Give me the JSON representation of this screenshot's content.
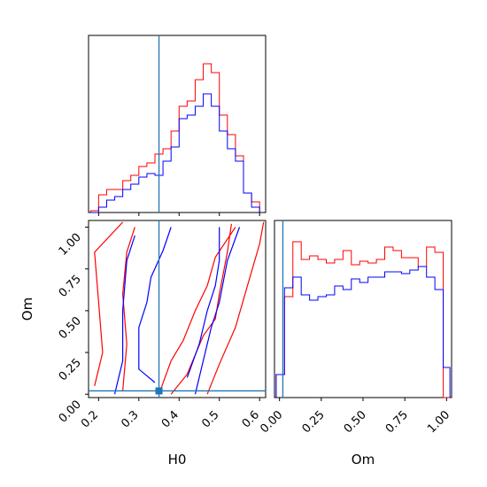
{
  "chart_data": {
    "type": "corner",
    "colors": {
      "series_a": "#ff0000",
      "series_b": "#0000ff",
      "truth": "#1f77b4"
    },
    "truth": {
      "H0": 0.35,
      "Om": 0.02
    },
    "panels": [
      {
        "id": "hist-H0",
        "type": "histogram",
        "xlim": [
          0.175,
          0.615
        ],
        "ylim": [
          0,
          1
        ],
        "xticks": [
          0.2,
          0.3,
          0.4,
          0.5,
          0.6
        ],
        "bin_edges": [
          0.18,
          0.2,
          0.22,
          0.24,
          0.26,
          0.28,
          0.3,
          0.32,
          0.34,
          0.36,
          0.38,
          0.4,
          0.42,
          0.44,
          0.46,
          0.48,
          0.5,
          0.52,
          0.54,
          0.56,
          0.58,
          0.6
        ],
        "series": [
          {
            "color": "red",
            "values": [
              0.01,
              0.1,
              0.13,
              0.13,
              0.18,
              0.21,
              0.26,
              0.28,
              0.33,
              0.36,
              0.46,
              0.6,
              0.63,
              0.75,
              0.84,
              0.79,
              0.55,
              0.44,
              0.32,
              0.11,
              0.06
            ]
          },
          {
            "color": "blue",
            "values": [
              0.0,
              0.03,
              0.07,
              0.09,
              0.13,
              0.16,
              0.2,
              0.22,
              0.21,
              0.29,
              0.37,
              0.53,
              0.55,
              0.6,
              0.67,
              0.6,
              0.46,
              0.36,
              0.29,
              0.11,
              0.03
            ]
          }
        ]
      },
      {
        "id": "contour-H0-Om",
        "type": "contour",
        "xlabel": "H0",
        "ylabel": "Om",
        "xlim": [
          0.175,
          0.615
        ],
        "ylim": [
          -0.02,
          1.04
        ],
        "xticks": [
          0.2,
          0.3,
          0.4,
          0.5,
          0.6
        ],
        "yticks": [
          0.0,
          0.25,
          0.5,
          0.75,
          1.0
        ],
        "xtick_labels": [
          "0.2",
          "0.3",
          "0.4",
          "0.5",
          "0.6"
        ],
        "ytick_labels": [
          "0.00",
          "0.25",
          "0.50",
          "0.75",
          "1.00"
        ],
        "series": [
          {
            "color": "red",
            "contours": [
              [
                [
                  0.19,
                  0.05
                ],
                [
                  0.21,
                  0.25
                ],
                [
                  0.2,
                  0.55
                ],
                [
                  0.19,
                  0.85
                ],
                [
                  0.26,
                  1.03
                ]
              ],
              [
                [
                  0.26,
                  0.02
                ],
                [
                  0.27,
                  0.3
                ],
                [
                  0.26,
                  0.6
                ],
                [
                  0.27,
                  0.85
                ],
                [
                  0.29,
                  1.0
                ]
              ],
              [
                [
                  0.35,
                  0.0
                ],
                [
                  0.38,
                  0.2
                ],
                [
                  0.41,
                  0.32
                ],
                [
                  0.44,
                  0.5
                ],
                [
                  0.47,
                  0.65
                ],
                [
                  0.49,
                  0.82
                ],
                [
                  0.54,
                  1.0
                ]
              ],
              [
                [
                  0.47,
                  0.0
                ],
                [
                  0.5,
                  0.18
                ],
                [
                  0.54,
                  0.4
                ],
                [
                  0.57,
                  0.65
                ],
                [
                  0.6,
                  0.9
                ],
                [
                  0.61,
                  1.03
                ]
              ],
              [
                [
                  0.38,
                  0.0
                ],
                [
                  0.42,
                  0.12
                ],
                [
                  0.46,
                  0.35
                ],
                [
                  0.49,
                  0.45
                ],
                [
                  0.5,
                  0.6
                ],
                [
                  0.52,
                  0.85
                ],
                [
                  0.53,
                  1.02
                ]
              ]
            ]
          },
          {
            "color": "blue",
            "contours": [
              [
                [
                  0.24,
                  0.0
                ],
                [
                  0.26,
                  0.2
                ],
                [
                  0.26,
                  0.5
                ],
                [
                  0.27,
                  0.8
                ],
                [
                  0.29,
                  0.95
                ]
              ],
              [
                [
                  0.34,
                  0.07
                ],
                [
                  0.3,
                  0.15
                ],
                [
                  0.3,
                  0.4
                ],
                [
                  0.32,
                  0.55
                ],
                [
                  0.33,
                  0.7
                ],
                [
                  0.36,
                  0.86
                ],
                [
                  0.38,
                  1.0
                ]
              ],
              [
                [
                  0.44,
                  0.0
                ],
                [
                  0.46,
                  0.2
                ],
                [
                  0.48,
                  0.4
                ],
                [
                  0.5,
                  0.55
                ],
                [
                  0.52,
                  0.8
                ],
                [
                  0.55,
                  1.0
                ]
              ],
              [
                [
                  0.42,
                  0.1
                ],
                [
                  0.45,
                  0.3
                ],
                [
                  0.47,
                  0.5
                ],
                [
                  0.49,
                  0.65
                ],
                [
                  0.5,
                  0.8
                ],
                [
                  0.5,
                  1.0
                ]
              ]
            ]
          }
        ]
      },
      {
        "id": "hist-Om",
        "type": "histogram",
        "xlabel": "Om",
        "xlim": [
          -0.03,
          1.03
        ],
        "ylim": [
          0,
          1
        ],
        "xticks": [
          0.0,
          0.25,
          0.5,
          0.75,
          1.0
        ],
        "xtick_labels": [
          "0.00",
          "0.25",
          "0.50",
          "0.75",
          "1.00"
        ],
        "bin_edges": [
          -0.02,
          0.03,
          0.08,
          0.13,
          0.18,
          0.23,
          0.28,
          0.33,
          0.38,
          0.43,
          0.48,
          0.53,
          0.58,
          0.63,
          0.68,
          0.73,
          0.78,
          0.83,
          0.88,
          0.93,
          0.98,
          1.02
        ],
        "series": [
          {
            "color": "red",
            "values": [
              0.13,
              0.57,
              0.88,
              0.78,
              0.8,
              0.78,
              0.76,
              0.78,
              0.83,
              0.75,
              0.77,
              0.76,
              0.78,
              0.85,
              0.83,
              0.79,
              0.79,
              0.74,
              0.85,
              0.82,
              0.0
            ]
          },
          {
            "color": "blue",
            "values": [
              0.13,
              0.62,
              0.68,
              0.58,
              0.55,
              0.57,
              0.58,
              0.63,
              0.61,
              0.67,
              0.65,
              0.68,
              0.68,
              0.71,
              0.71,
              0.7,
              0.72,
              0.74,
              0.68,
              0.61,
              0.17
            ]
          }
        ]
      }
    ]
  }
}
